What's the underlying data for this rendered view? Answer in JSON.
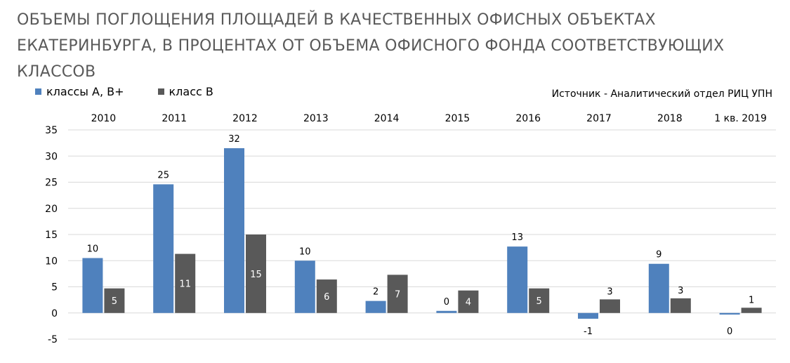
{
  "title": "ОБЪЕМЫ ПОГЛОЩЕНИЯ ПЛОЩАДЕЙ В  КАЧЕСТВЕННЫХ ОФИСНЫХ ОБЪЕКТАХ ЕКАТЕРИНБУРГА, В ПРОЦЕНТАХ ОТ ОБЪЕМА ОФИСНОГО ФОНДА СООТВЕТСТВУЮЩИХ КЛАССОВ",
  "source": "Источник - Аналитический отдел РИЦ УПН",
  "colors": {
    "series_a": "#4f81bd",
    "series_b": "#595959",
    "grid": "#d9d9d9",
    "title": "#595959"
  },
  "chart_data": {
    "type": "bar",
    "title": "ОБЪЕМЫ ПОГЛОЩЕНИЯ ПЛОЩАДЕЙ В  КАЧЕСТВЕННЫХ ОФИСНЫХ ОБЪЕКТАХ ЕКАТЕРИНБУРГА, В ПРОЦЕНТАХ ОТ ОБЪЕМА ОФИСНОГО ФОНДА СООТВЕТСТВУЮЩИХ КЛАССОВ",
    "categories": [
      "2010",
      "2011",
      "2012",
      "2013",
      "2014",
      "2015",
      "2016",
      "2017",
      "2018",
      "1 кв. 2019"
    ],
    "category_axis_position": "top",
    "series": [
      {
        "name": "классы А, В+",
        "values": [
          10.5,
          24.6,
          31.5,
          10.0,
          2.3,
          0.4,
          12.7,
          -1.1,
          9.4,
          -0.3
        ],
        "labels": [
          "10",
          "25",
          "32",
          "10",
          "2",
          "0",
          "13",
          "-1",
          "9",
          "0"
        ]
      },
      {
        "name": "класс В",
        "values": [
          4.7,
          11.3,
          15.0,
          6.4,
          7.3,
          4.3,
          4.7,
          2.6,
          2.8,
          1.0
        ],
        "labels": [
          "5",
          "11",
          "15",
          "6",
          "7",
          "4",
          "5",
          "3",
          "3",
          "1"
        ]
      }
    ],
    "ylim": [
      -5,
      35
    ],
    "yticks": [
      -5,
      0,
      5,
      10,
      15,
      20,
      25,
      30,
      35
    ],
    "grid": true,
    "legend": "top-left"
  }
}
